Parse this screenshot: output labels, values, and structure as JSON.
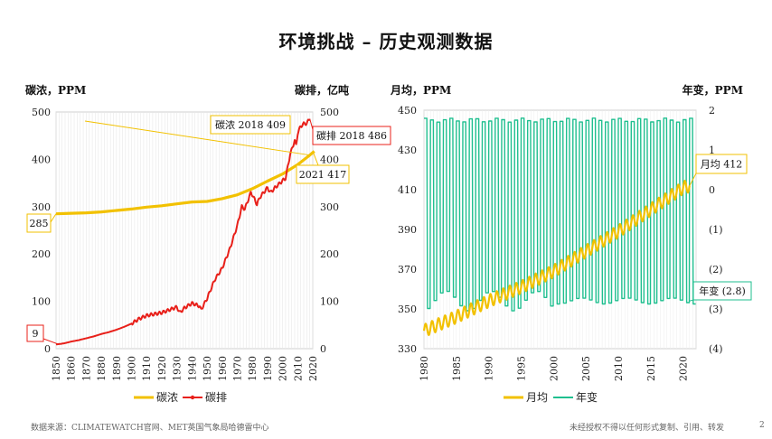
{
  "title": "环境挑战 – 历史观测数据",
  "footer": {
    "source": "数据来源：CLIMATEWATCH官网、MET英国气象局哈德雷中心",
    "notice": "未经授权不得以任何形式复制、引用、转发",
    "page": "2"
  },
  "colors": {
    "concentration": "#f2c100",
    "emissions": "#e8201a",
    "monthly": "#f2c100",
    "annual_change": "#1fbf8f",
    "callout_border_yellow": "#f2c100",
    "callout_border_red": "#e8201a",
    "callout_border_green": "#1fbf8f"
  },
  "chart_data": [
    {
      "type": "line",
      "ylabel_left": "碳浓，PPM",
      "ylabel_right": "碳排，亿吨",
      "xlim": [
        1850,
        2020
      ],
      "xticks": [
        "1850",
        "1860",
        "1870",
        "1880",
        "1890",
        "1900",
        "1910",
        "1920",
        "1930",
        "1940",
        "1950",
        "1960",
        "1970",
        "1980",
        "1990",
        "2000",
        "2010",
        "2020"
      ],
      "ylim_left": [
        0,
        500
      ],
      "yticks_left": [
        "0",
        "100",
        "200",
        "300",
        "400",
        "500"
      ],
      "ylim_right": [
        0,
        500
      ],
      "yticks_right": [
        "0",
        "100",
        "200",
        "300",
        "400",
        "500"
      ],
      "grid": "vertical",
      "legend": "bottom",
      "series": [
        {
          "name": "碳浓",
          "axis": "left",
          "x": [
            1850,
            1860,
            1870,
            1880,
            1890,
            1900,
            1910,
            1920,
            1930,
            1940,
            1950,
            1960,
            1970,
            1980,
            1990,
            2000,
            2010,
            2018,
            2021
          ],
          "values": [
            285,
            286,
            287,
            289,
            292,
            295,
            299,
            302,
            306,
            310,
            311,
            317,
            325,
            338,
            354,
            369,
            389,
            409,
            417
          ]
        },
        {
          "name": "碳排",
          "axis": "right",
          "x": [
            1850,
            1855,
            1860,
            1865,
            1870,
            1875,
            1880,
            1885,
            1890,
            1895,
            1900,
            1905,
            1910,
            1915,
            1920,
            1925,
            1930,
            1932,
            1935,
            1940,
            1945,
            1946,
            1950,
            1955,
            1960,
            1965,
            1970,
            1973,
            1975,
            1979,
            1980,
            1983,
            1985,
            1990,
            1992,
            1995,
            2000,
            2002,
            2005,
            2008,
            2009,
            2010,
            2012,
            2014,
            2016,
            2018
          ],
          "values": [
            9,
            11,
            15,
            18,
            22,
            26,
            31,
            35,
            40,
            46,
            53,
            63,
            70,
            73,
            76,
            82,
            88,
            76,
            86,
            96,
            90,
            82,
            106,
            145,
            170,
            210,
            260,
            300,
            295,
            330,
            325,
            305,
            320,
            340,
            330,
            340,
            355,
            360,
            410,
            440,
            430,
            455,
            470,
            475,
            476,
            486
          ]
        }
      ],
      "annotations": [
        {
          "label": "碳浓 2018 409"
        },
        {
          "label": "碳排 2018 486"
        },
        {
          "label": "2021 417"
        },
        {
          "label": "285"
        },
        {
          "label": "9"
        }
      ]
    },
    {
      "type": "line",
      "ylabel_left": "月均，PPM",
      "ylabel_right": "年变，PPM",
      "xlim": [
        1980,
        2022
      ],
      "xticks": [
        "1980",
        "1985",
        "1990",
        "1995",
        "2000",
        "2005",
        "2010",
        "2015",
        "2020"
      ],
      "ylim_left": [
        330,
        450
      ],
      "yticks_left": [
        "330",
        "350",
        "370",
        "390",
        "410",
        "430",
        "450"
      ],
      "ylim_right": [
        -4,
        2
      ],
      "yticks_right": [
        "(4)",
        "(3)",
        "(2)",
        "(1)",
        "0",
        "1",
        "2"
      ],
      "grid": "vertical",
      "legend": "bottom",
      "series": [
        {
          "name": "月均",
          "axis": "left",
          "x": [
            1980,
            1985,
            1990,
            1995,
            2000,
            2005,
            2010,
            2015,
            2020,
            2021
          ],
          "values": [
            339,
            346,
            354,
            361,
            369,
            379,
            389,
            400,
            411,
            412
          ],
          "seasonal_amplitude": 3.2
        },
        {
          "name": "年变",
          "axis": "right",
          "high": 1.75,
          "low": -2.8,
          "cycles_per_year": 1
        }
      ],
      "annotations": [
        {
          "label": "月均 412"
        },
        {
          "label": "年变 (2.8)"
        }
      ]
    }
  ],
  "legend_left": {
    "concentration": "碳浓",
    "emissions": "碳排"
  },
  "legend_right": {
    "monthly": "月均",
    "annual_change": "年变"
  }
}
